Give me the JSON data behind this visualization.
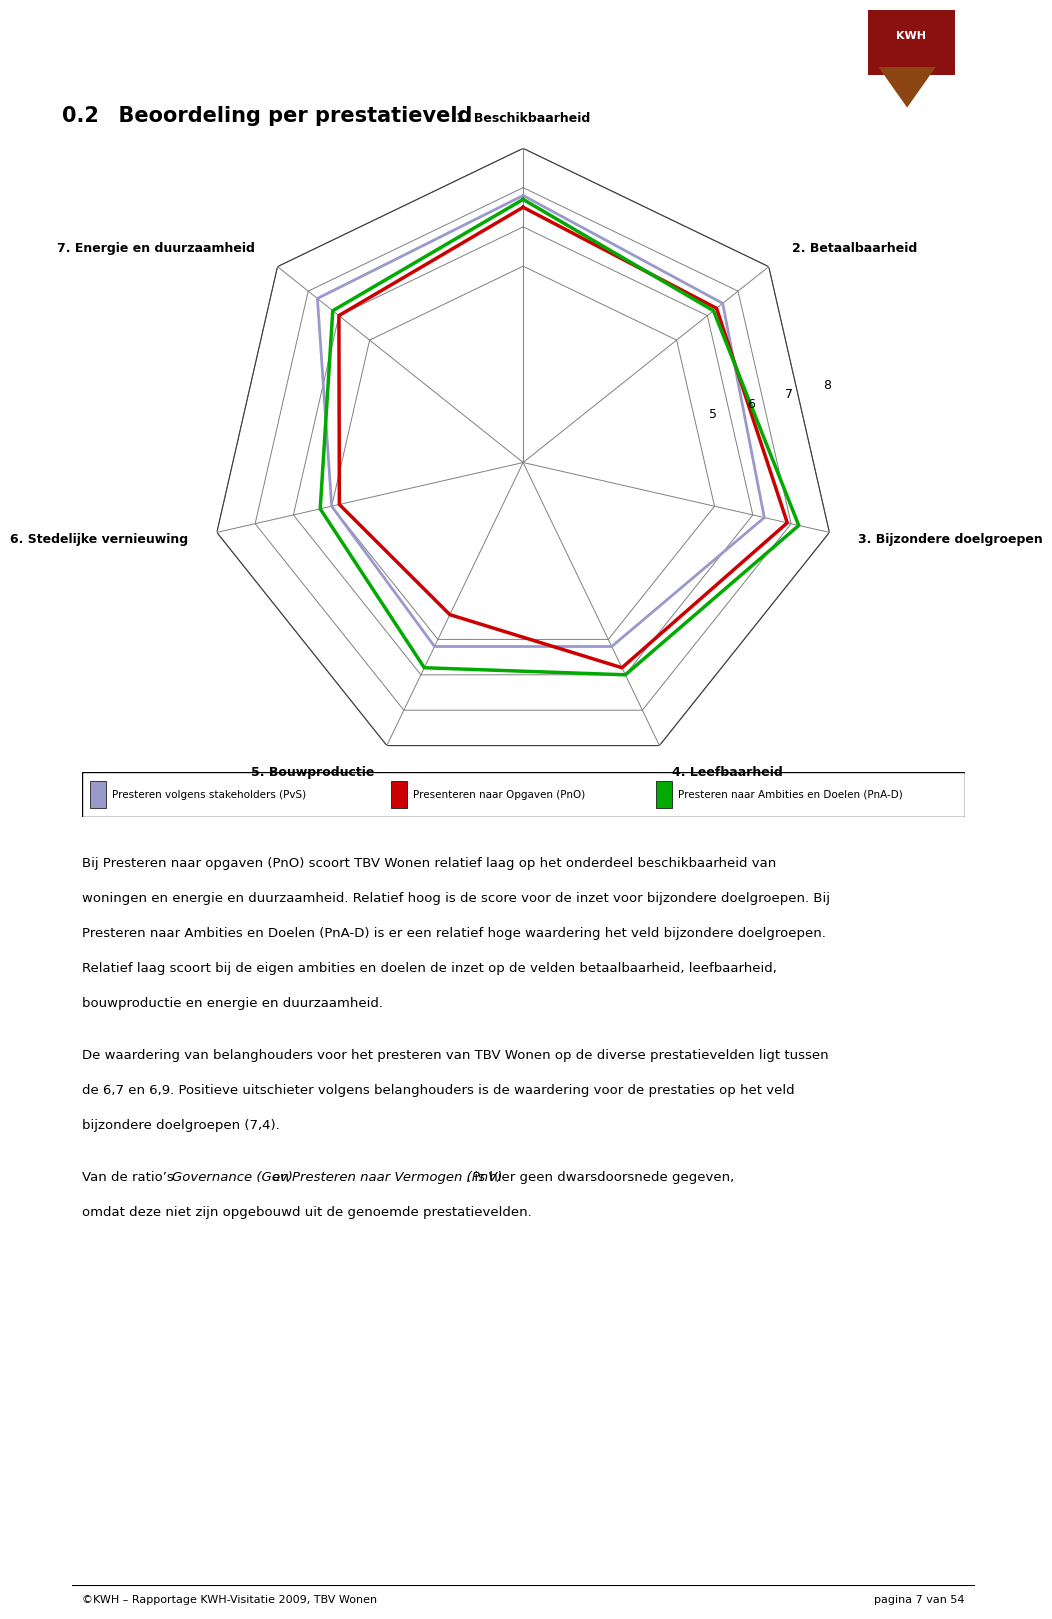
{
  "title_num": "0.2",
  "title_text": "  Beoordeling per prestatieveld",
  "categories": [
    "1. Beschikbaarheid",
    "2. Betaalbaarheid",
    "3. Bijzondere doelgroepen",
    "4. Leefbaarheid",
    "5. Bouwproductie",
    "6. Stedelijke vernieuwing",
    "7. Energie en duurzaamheid"
  ],
  "r_min": 0,
  "r_max": 8,
  "r_ticks": [
    5,
    6,
    7,
    8
  ],
  "series": [
    {
      "name": "Presteren volgens stakeholders (PvS)",
      "color": "#9999cc",
      "linewidth": 2.0,
      "values": [
        6.8,
        6.5,
        6.3,
        5.2,
        5.2,
        5.0,
        6.7
      ]
    },
    {
      "name": "Presenteren naar Opgaven (PnO)",
      "color": "#cc0000",
      "linewidth": 2.5,
      "values": [
        6.5,
        6.3,
        6.9,
        5.8,
        4.3,
        4.8,
        6.0
      ]
    },
    {
      "name": "Presteren naar Ambities en Doelen (PnA-D)",
      "color": "#00aa00",
      "linewidth": 2.5,
      "values": [
        6.7,
        6.2,
        7.2,
        6.0,
        5.8,
        5.3,
        6.2
      ]
    }
  ],
  "background_color": "#ffffff",
  "footer_left": "©KWH – Rapportage KWH-Visitatie 2009, TBV Wonen",
  "footer_right": "pagina 7 van 54"
}
